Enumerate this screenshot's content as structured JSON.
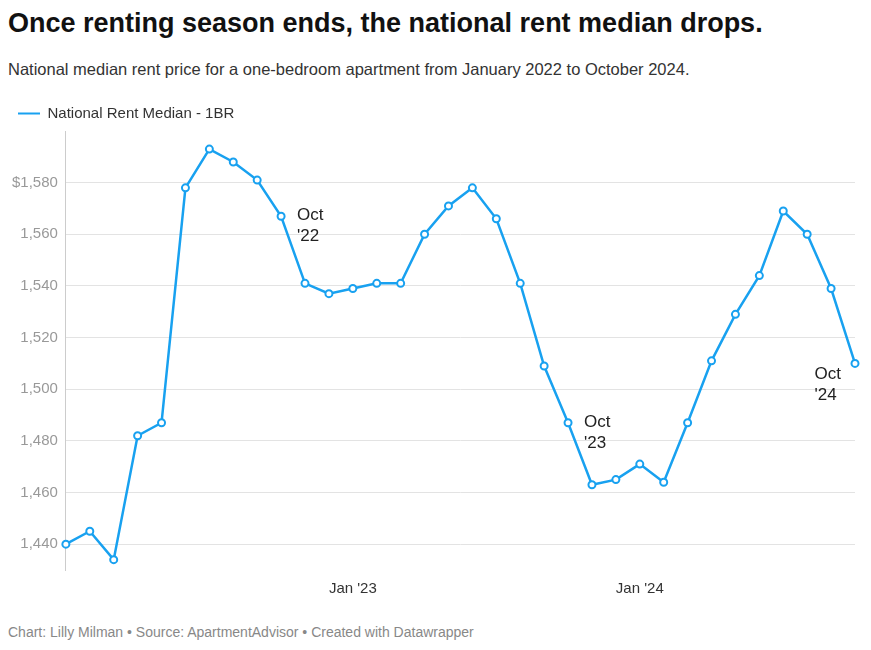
{
  "chart_data": {
    "type": "line",
    "title": "Once renting season ends, the national rent median drops.",
    "subtitle": "National median rent price for a one-bedroom apartment from January 2022 to October 2024.",
    "source": "Chart: Lilly Milman • Source: ApartmentAdvisor • Created with Datawrapper",
    "categories": [
      null,
      null,
      null,
      null,
      null,
      null,
      null,
      null,
      null,
      null,
      null,
      null,
      "Jan '23",
      null,
      null,
      null,
      null,
      null,
      null,
      null,
      null,
      null,
      null,
      null,
      "Jan '24",
      null,
      null,
      null,
      null,
      null,
      null,
      null,
      null,
      null
    ],
    "series": [
      {
        "name": "National Rent Median - 1BR",
        "color": "#18a1f0",
        "marker": "circle",
        "line_style": "solid",
        "values": [
          1440,
          1445,
          1434,
          1482,
          1487,
          1578,
          1593,
          1588,
          1581,
          1567,
          1541,
          1537,
          1539,
          1541,
          1541,
          1560,
          1571,
          1578,
          1566,
          1541,
          1509,
          1487,
          1463,
          1465,
          1471,
          1464,
          1487,
          1511,
          1529,
          1544,
          1569,
          1560,
          1539,
          1510
        ]
      }
    ],
    "annotations": [
      {
        "text": "Oct '22",
        "index": 9
      },
      {
        "text": "Oct '23",
        "index": 21
      },
      {
        "text": "Oct '24",
        "index": 33
      }
    ],
    "ylim": [
      1430,
      1600
    ],
    "yticks": [
      {
        "value": 1440,
        "label": "1,440"
      },
      {
        "value": 1460,
        "label": "1,460"
      },
      {
        "value": 1480,
        "label": "1,480"
      },
      {
        "value": 1500,
        "label": "1,500"
      },
      {
        "value": 1520,
        "label": "1,520"
      },
      {
        "value": 1540,
        "label": "1,540"
      },
      {
        "value": 1560,
        "label": "1,560"
      },
      {
        "value": 1580,
        "label": "$1,580"
      }
    ],
    "grid": true,
    "legend": "top-left"
  }
}
